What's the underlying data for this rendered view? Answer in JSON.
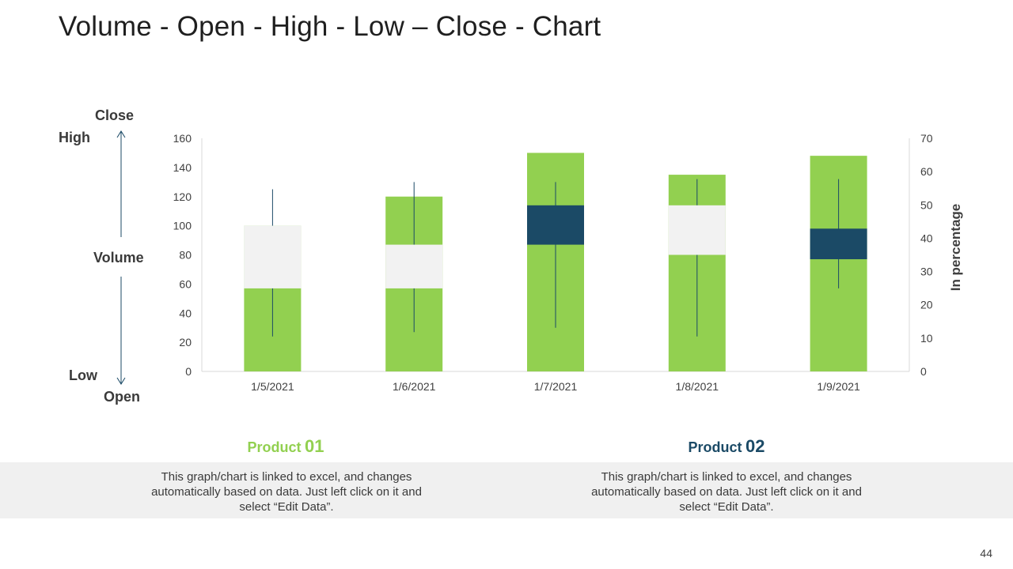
{
  "title": "Volume - Open - High - Low – Close - Chart",
  "legend": {
    "close": "Close",
    "high": "High",
    "volume": "Volume",
    "low": "Low",
    "open": "Open"
  },
  "chart_data": {
    "type": "bar",
    "subtype": "volume-open-high-low-close",
    "title": "",
    "xlabel": "",
    "ylabel": "",
    "y2label": "In percentage",
    "ylim": [
      0,
      160
    ],
    "yticks": [
      0,
      20,
      40,
      60,
      80,
      100,
      120,
      140,
      160
    ],
    "y2lim": [
      0,
      70
    ],
    "y2ticks": [
      0,
      10,
      20,
      30,
      40,
      50,
      60,
      70
    ],
    "categories": [
      "1/5/2021",
      "1/6/2021",
      "1/7/2021",
      "1/8/2021",
      "1/9/2021"
    ],
    "series": [
      {
        "name": "Volume",
        "values": [
          100,
          120,
          150,
          135,
          148
        ]
      },
      {
        "name": "Open",
        "values": [
          57,
          57,
          114,
          80,
          98
        ]
      },
      {
        "name": "High",
        "values": [
          125,
          130,
          130,
          132,
          132
        ]
      },
      {
        "name": "Low",
        "values": [
          24,
          27,
          30,
          24,
          57
        ]
      },
      {
        "name": "Close",
        "values": [
          100,
          87,
          87,
          114,
          77
        ]
      }
    ],
    "colors": {
      "volume": "#92d050",
      "up_box": "#f2f2f2",
      "down_box": "#1b4a66",
      "wick": "#1b4a66",
      "axis": "#d9d9d9"
    },
    "grid": false
  },
  "products": [
    {
      "name": "Product",
      "number": "01",
      "description": "This graph/chart is linked to excel, and changes automatically based on data. Just left click on it and select “Edit Data”."
    },
    {
      "name": "Product",
      "number": "02",
      "description": "This graph/chart is linked to excel, and changes automatically based on data. Just left click on it and select “Edit Data”."
    }
  ],
  "page_number": "44"
}
